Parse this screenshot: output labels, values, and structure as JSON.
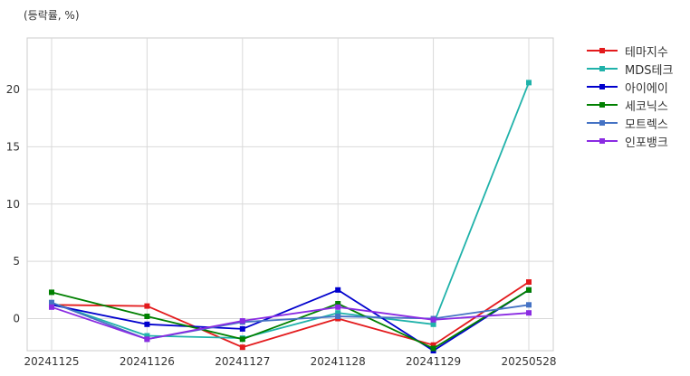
{
  "chart_data": {
    "type": "line",
    "unit_note": "(등락률, %)",
    "categories": [
      "20241125",
      "20241126",
      "20241127",
      "20241128",
      "20241129",
      "20250528"
    ],
    "yticks": [
      0,
      5,
      10,
      15,
      20
    ],
    "ylim": [
      -2.8,
      24.5
    ],
    "grid": true,
    "legend_placement": "outside-right",
    "series": [
      {
        "name": "테마지수",
        "color": "#e31a1c",
        "values": [
          1.2,
          1.1,
          -2.5,
          0.0,
          -2.3,
          3.2
        ]
      },
      {
        "name": "MDS테크",
        "color": "#20b2aa",
        "values": [
          1.4,
          -1.5,
          -1.7,
          0.5,
          -0.5,
          20.6
        ]
      },
      {
        "name": "아이에이",
        "color": "#0000cd",
        "values": [
          1.2,
          -0.5,
          -0.9,
          2.5,
          -2.8,
          2.5
        ]
      },
      {
        "name": "세코닉스",
        "color": "#008000",
        "values": [
          2.3,
          0.2,
          -1.8,
          1.3,
          -2.6,
          2.5
        ]
      },
      {
        "name": "모트렉스",
        "color": "#4472c4",
        "values": [
          1.4,
          -1.8,
          -0.3,
          0.2,
          0.0,
          1.2
        ]
      },
      {
        "name": "인포뱅크",
        "color": "#8a2be2",
        "values": [
          1.0,
          -1.8,
          -0.2,
          1.0,
          -0.1,
          0.5
        ]
      }
    ]
  }
}
